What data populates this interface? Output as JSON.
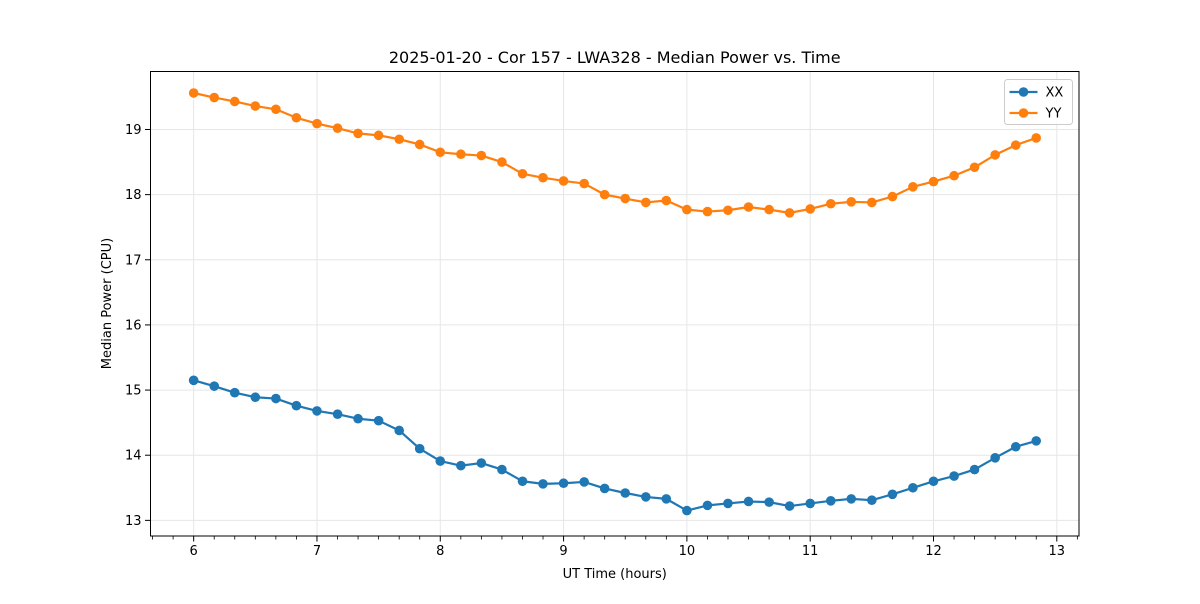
{
  "figure": {
    "background": "#ffffff"
  },
  "chart_data": {
    "type": "line",
    "title": "2025-01-20 - Cor 157 - LWA328 - Median Power vs. Time",
    "xlabel": "UT Time (hours)",
    "ylabel": "Median Power (CPU)",
    "xlim": [
      5.65,
      13.18
    ],
    "ylim": [
      12.76,
      19.89
    ],
    "xticks": [
      6,
      7,
      8,
      9,
      10,
      11,
      12,
      13
    ],
    "yticks": [
      13,
      14,
      15,
      16,
      17,
      18,
      19
    ],
    "x_minor_step": 0.1666667,
    "grid": true,
    "legend_position": "upper right",
    "x": [
      6.0,
      6.167,
      6.333,
      6.5,
      6.667,
      6.833,
      7.0,
      7.167,
      7.333,
      7.5,
      7.667,
      7.833,
      8.0,
      8.167,
      8.333,
      8.5,
      8.667,
      8.833,
      9.0,
      9.167,
      9.333,
      9.5,
      9.667,
      9.833,
      10.0,
      10.167,
      10.333,
      10.5,
      10.667,
      10.833,
      11.0,
      11.167,
      11.333,
      11.5,
      11.667,
      11.833,
      12.0,
      12.167,
      12.333,
      12.5,
      12.667,
      12.833
    ],
    "series": [
      {
        "name": "XX",
        "color": "#1f77b4",
        "marker": "circle",
        "values": [
          15.15,
          15.06,
          14.96,
          14.89,
          14.87,
          14.76,
          14.68,
          14.63,
          14.56,
          14.53,
          14.38,
          14.1,
          13.91,
          13.84,
          13.88,
          13.78,
          13.6,
          13.56,
          13.57,
          13.59,
          13.49,
          13.42,
          13.36,
          13.33,
          13.15,
          13.23,
          13.26,
          13.29,
          13.28,
          13.22,
          13.26,
          13.3,
          13.33,
          13.31,
          13.4,
          13.5,
          13.6,
          13.68,
          13.78,
          13.96,
          14.13,
          14.22
        ]
      },
      {
        "name": "YY",
        "color": "#ff7f0e",
        "marker": "circle",
        "values": [
          19.56,
          19.49,
          19.43,
          19.36,
          19.31,
          19.18,
          19.09,
          19.02,
          18.94,
          18.91,
          18.85,
          18.77,
          18.65,
          18.62,
          18.6,
          18.5,
          18.32,
          18.26,
          18.21,
          18.17,
          18.0,
          17.94,
          17.88,
          17.91,
          17.77,
          17.74,
          17.76,
          17.81,
          17.77,
          17.72,
          17.78,
          17.86,
          17.89,
          17.88,
          17.97,
          18.12,
          18.2,
          18.29,
          18.42,
          18.61,
          18.76,
          18.87
        ]
      }
    ]
  },
  "colors": {
    "grid": "#e6e6e6",
    "spine": "#000000",
    "tick": "#000000",
    "legend_border": "#cccccc",
    "legend_fill": "#ffffff"
  }
}
